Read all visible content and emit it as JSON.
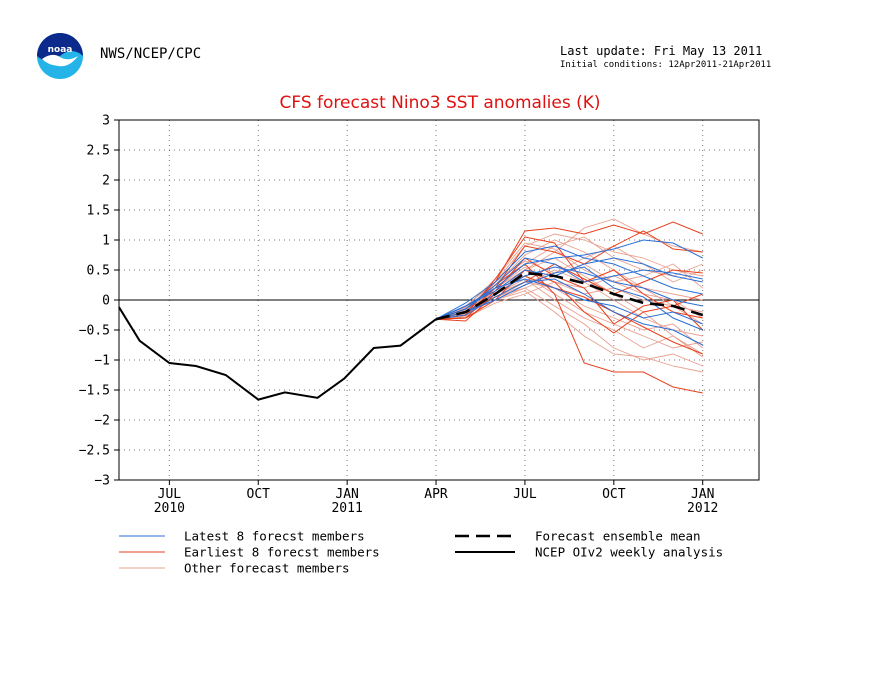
{
  "header": {
    "org": "NWS/NCEP/CPC",
    "last_update": "Last update: Fri May 13 2011",
    "initial_conditions": "Initial conditions: 12Apr2011-21Apr2011"
  },
  "chart_data": {
    "type": "line",
    "title": "CFS forecast Nino3 SST anomalies (K)",
    "xlabel": "",
    "ylabel": "",
    "ylim": [
      -3,
      3
    ],
    "yticks": [
      3,
      2.5,
      2,
      1.5,
      1,
      0.5,
      0,
      -0.5,
      -1,
      -1.5,
      -2,
      -2.5,
      -3
    ],
    "ytick_labels": [
      "3",
      "2.5",
      "2",
      "1.5",
      "1",
      "0.5",
      "0",
      "−0.5",
      "−1",
      "−1.5",
      "−2",
      "−2.5",
      "−3"
    ],
    "xlim_months": [
      0.3,
      21.9
    ],
    "xticks": [
      {
        "month": 2,
        "label": "JUL",
        "sublabel": "2010"
      },
      {
        "month": 5,
        "label": "OCT",
        "sublabel": ""
      },
      {
        "month": 8,
        "label": "JAN",
        "sublabel": "2011"
      },
      {
        "month": 11,
        "label": "APR",
        "sublabel": ""
      },
      {
        "month": 14,
        "label": "JUL",
        "sublabel": ""
      },
      {
        "month": 17,
        "label": "OCT",
        "sublabel": ""
      },
      {
        "month": 20,
        "label": "JAN",
        "sublabel": "2012"
      }
    ],
    "grid": true,
    "zero_line": true,
    "legend": [
      {
        "label": "Latest 8 forecst members",
        "color": "#2a6fd6",
        "style": "solid-thin"
      },
      {
        "label": "Earliest 8 forecst members",
        "color": "#e8401c",
        "style": "solid-thin"
      },
      {
        "label": "Other forecast members",
        "color": "#e8a090",
        "style": "solid-thin"
      },
      {
        "label": "Forecast ensemble mean",
        "color": "#000000",
        "style": "dashed-thick"
      },
      {
        "label": "NCEP OIv2 weekly analysis",
        "color": "#000000",
        "style": "solid-thick"
      }
    ],
    "series": [
      {
        "name": "NCEP OIv2 weekly analysis",
        "color": "#000000",
        "x": [
          0.3,
          1.0,
          2.0,
          2.9,
          3.9,
          5.0,
          5.9,
          7.0,
          7.9,
          8.9,
          9.8,
          11.0
        ],
        "values": [
          -0.12,
          -0.68,
          -1.05,
          -1.1,
          -1.25,
          -1.66,
          -1.54,
          -1.63,
          -1.31,
          -0.8,
          -0.76,
          -0.32
        ]
      },
      {
        "name": "Forecast ensemble mean",
        "color": "#000000",
        "x": [
          11.0,
          12.0,
          13.0,
          14.0,
          15.0,
          16.0,
          17.0,
          18.0,
          19.0,
          20.0
        ],
        "values": [
          -0.32,
          -0.2,
          0.1,
          0.45,
          0.4,
          0.28,
          0.1,
          -0.05,
          -0.1,
          -0.25
        ]
      }
    ],
    "members": {
      "x": [
        11.0,
        12.0,
        13.0,
        14.0,
        15.0,
        16.0,
        17.0,
        18.0,
        19.0,
        20.0
      ],
      "latest": [
        [
          -0.32,
          -0.15,
          0.2,
          0.6,
          0.7,
          0.75,
          0.85,
          1.0,
          0.95,
          0.7
        ],
        [
          -0.32,
          -0.1,
          0.15,
          0.5,
          0.4,
          0.6,
          0.7,
          0.6,
          0.4,
          0.3
        ],
        [
          -0.32,
          -0.25,
          0.05,
          0.3,
          0.35,
          0.1,
          -0.2,
          -0.4,
          -0.5,
          -0.75
        ],
        [
          -0.32,
          -0.2,
          0.1,
          0.4,
          0.55,
          0.45,
          0.3,
          0.2,
          0.0,
          -0.1
        ],
        [
          -0.32,
          -0.15,
          0.25,
          0.7,
          0.6,
          0.3,
          0.4,
          0.5,
          0.45,
          0.35
        ],
        [
          -0.32,
          -0.1,
          0.2,
          0.35,
          0.2,
          0.0,
          -0.1,
          -0.3,
          -0.2,
          -0.4
        ],
        [
          -0.32,
          -0.05,
          0.3,
          0.8,
          0.9,
          0.7,
          0.6,
          0.4,
          0.2,
          0.1
        ],
        [
          -0.32,
          -0.2,
          0.0,
          0.25,
          0.45,
          0.55,
          0.2,
          0.05,
          -0.3,
          -0.5
        ]
      ],
      "earliest": [
        [
          -0.32,
          -0.2,
          0.3,
          1.15,
          1.2,
          1.1,
          1.25,
          1.1,
          1.3,
          1.1
        ],
        [
          -0.32,
          -0.25,
          0.2,
          0.9,
          0.8,
          0.6,
          0.9,
          1.15,
          0.85,
          0.8
        ],
        [
          -0.32,
          -0.3,
          0.0,
          0.5,
          0.3,
          -0.2,
          -0.55,
          -0.2,
          -0.1,
          0.1
        ],
        [
          -0.32,
          -0.15,
          0.25,
          0.6,
          0.1,
          -1.05,
          -1.2,
          -1.2,
          -1.45,
          -1.55
        ],
        [
          -0.32,
          -0.35,
          0.1,
          0.4,
          0.2,
          0.05,
          -0.2,
          -0.45,
          -0.7,
          -0.9
        ],
        [
          -0.32,
          -0.2,
          0.05,
          0.3,
          0.6,
          0.35,
          0.1,
          0.3,
          0.5,
          0.45
        ],
        [
          -0.32,
          -0.3,
          0.15,
          0.7,
          0.4,
          0.2,
          -0.4,
          -0.1,
          0.0,
          -0.5
        ],
        [
          -0.32,
          -0.25,
          0.35,
          1.05,
          0.95,
          0.3,
          0.5,
          0.1,
          -0.2,
          -0.3
        ]
      ],
      "others": [
        [
          -0.32,
          -0.2,
          0.1,
          0.5,
          0.8,
          1.2,
          1.35,
          1.1,
          0.9,
          0.8
        ],
        [
          -0.32,
          -0.3,
          0.0,
          0.2,
          -0.1,
          -0.4,
          -0.8,
          -1.0,
          -0.9,
          -1.1
        ],
        [
          -0.32,
          -0.1,
          0.3,
          0.9,
          1.1,
          1.0,
          0.8,
          0.7,
          0.5,
          0.4
        ],
        [
          -0.32,
          -0.25,
          0.1,
          0.35,
          0.0,
          -0.3,
          -0.5,
          -0.8,
          -0.6,
          -0.9
        ],
        [
          -0.32,
          -0.15,
          0.2,
          0.55,
          0.3,
          0.1,
          0.2,
          0.0,
          -0.1,
          -0.2
        ],
        [
          -0.32,
          -0.2,
          0.05,
          0.2,
          0.4,
          0.6,
          0.3,
          0.1,
          0.0,
          -0.3
        ],
        [
          -0.32,
          -0.28,
          0.25,
          0.75,
          1.0,
          0.8,
          0.5,
          0.2,
          0.1,
          0.0
        ],
        [
          -0.32,
          -0.18,
          0.15,
          0.4,
          0.1,
          -0.2,
          -0.4,
          -0.6,
          -0.8,
          -0.7
        ],
        [
          -0.32,
          -0.22,
          0.0,
          0.15,
          -0.2,
          -0.6,
          -0.9,
          -0.95,
          -1.1,
          -1.2
        ],
        [
          -0.32,
          -0.12,
          0.35,
          0.95,
          0.85,
          0.5,
          0.3,
          0.4,
          0.6,
          0.2
        ],
        [
          -0.32,
          -0.26,
          0.05,
          0.25,
          0.5,
          0.3,
          0.0,
          -0.3,
          -0.5,
          -0.6
        ],
        [
          -0.32,
          -0.16,
          0.3,
          0.65,
          0.45,
          0.7,
          0.9,
          0.6,
          0.3,
          0.5
        ],
        [
          -0.32,
          -0.24,
          0.1,
          0.3,
          0.2,
          -0.1,
          -0.3,
          -0.5,
          -0.4,
          -0.8
        ],
        [
          -0.32,
          -0.2,
          0.2,
          0.5,
          0.7,
          0.4,
          0.1,
          -0.2,
          -0.6,
          -0.95
        ],
        [
          -0.32,
          -0.3,
          -0.05,
          0.1,
          0.3,
          0.2,
          0.4,
          0.2,
          -0.1,
          -0.4
        ],
        [
          -0.32,
          -0.14,
          0.25,
          0.6,
          0.9,
          1.05,
          0.7,
          0.5,
          0.4,
          0.6
        ]
      ]
    }
  }
}
